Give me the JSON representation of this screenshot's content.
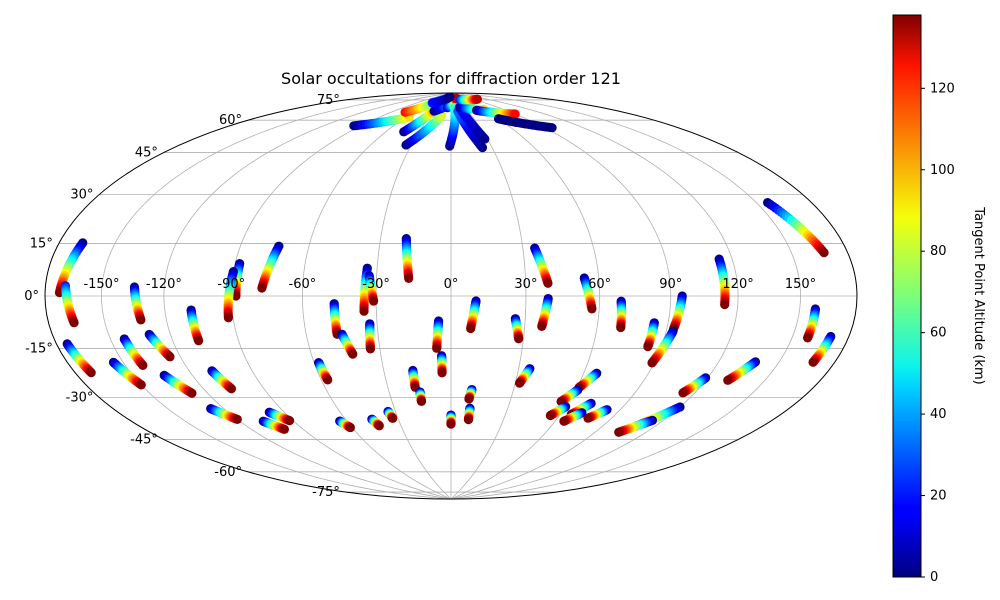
{
  "chart_data": {
    "type": "scatter",
    "projection": "hammer",
    "title": "Solar occultations for diffraction order 121",
    "lon_ticks": [
      -150,
      -120,
      -90,
      -60,
      -30,
      0,
      30,
      60,
      90,
      120,
      150
    ],
    "lat_ticks": [
      -75,
      -60,
      -45,
      -30,
      -15,
      0,
      15,
      30,
      45,
      60,
      75
    ],
    "lon_tick_labels": [
      "-150°",
      "-120°",
      "-90°",
      "-60°",
      "-30°",
      "0°",
      "30°",
      "60°",
      "90°",
      "120°",
      "150°"
    ],
    "lat_tick_labels": [
      "-75°",
      "-60°",
      "-45°",
      "-30°",
      "-15°",
      "0°",
      "15°",
      "30°",
      "45°",
      "60°",
      "75°"
    ],
    "grid": true,
    "colormap": "jet",
    "colorbar": {
      "label": "Tangent Point Altitude (km)",
      "range": [
        0,
        138
      ],
      "ticks": [
        0,
        20,
        40,
        60,
        80,
        100,
        120
      ],
      "tick_labels": [
        "0",
        "20",
        "40",
        "60",
        "80",
        "100",
        "120"
      ]
    },
    "tracks": [
      {
        "lon_start": -167,
        "lat_start": 16,
        "lon_end": -172,
        "lat_end": 1,
        "alt_start": 0,
        "alt_end": 138
      },
      {
        "lon_start": -169,
        "lat_start": 3,
        "lon_end": -166,
        "lat_end": -8,
        "alt_start": 20,
        "alt_end": 138
      },
      {
        "lon_start": -174,
        "lat_start": -14,
        "lon_end": -171,
        "lat_end": -23,
        "alt_start": 0,
        "alt_end": 138
      },
      {
        "lon_start": -155,
        "lat_start": -21,
        "lon_end": -150,
        "lat_end": -29,
        "alt_start": 0,
        "alt_end": 138
      },
      {
        "lon_start": -143,
        "lat_start": -14,
        "lon_end": -141,
        "lat_end": -23,
        "alt_start": 0,
        "alt_end": 138
      },
      {
        "lon_start": -134,
        "lat_start": 3,
        "lon_end": -132,
        "lat_end": -8,
        "alt_start": 0,
        "alt_end": 138
      },
      {
        "lon_start": -130,
        "lat_start": -13,
        "lon_end": -125,
        "lat_end": -21,
        "alt_start": 0,
        "alt_end": 138
      },
      {
        "lon_start": -134,
        "lat_start": -27,
        "lon_end": -128,
        "lat_end": -34,
        "alt_start": 0,
        "alt_end": 138
      },
      {
        "lon_start": -127,
        "lat_start": -40,
        "lon_end": -120,
        "lat_end": -45,
        "alt_start": 0,
        "alt_end": 138
      },
      {
        "lon_start": -108,
        "lat_start": -5,
        "lon_end": -108,
        "lat_end": -16,
        "alt_start": 0,
        "alt_end": 138
      },
      {
        "lon_start": -109,
        "lat_start": -27,
        "lon_end": -106,
        "lat_end": -34,
        "alt_start": 0,
        "alt_end": 138
      },
      {
        "lon_start": -107,
        "lat_start": -47,
        "lon_end": -101,
        "lat_end": -51,
        "alt_start": 0,
        "alt_end": 138
      },
      {
        "lon_start": -98,
        "lat_start": -44,
        "lon_end": -92,
        "lat_end": -48,
        "alt_start": 0,
        "alt_end": 138
      },
      {
        "lon_start": -88,
        "lat_start": 12,
        "lon_end": -88,
        "lat_end": 0,
        "alt_start": 0,
        "alt_end": 138
      },
      {
        "lon_start": -90,
        "lat_start": 9,
        "lon_end": -92,
        "lat_end": -8,
        "alt_start": 0,
        "alt_end": 138
      },
      {
        "lon_start": -73,
        "lat_start": 19,
        "lon_end": -77,
        "lat_end": 3,
        "alt_start": 0,
        "alt_end": 138
      },
      {
        "lon_start": -58,
        "lat_start": -26,
        "lon_end": -57,
        "lat_end": -33,
        "alt_start": 0,
        "alt_end": 138
      },
      {
        "lon_start": -64,
        "lat_start": -50,
        "lon_end": -61,
        "lat_end": -53,
        "alt_start": 0,
        "alt_end": 138
      },
      {
        "lon_start": -47,
        "lat_start": -3,
        "lon_end": -47,
        "lat_end": -15,
        "alt_start": 0,
        "alt_end": 138
      },
      {
        "lon_start": -45,
        "lat_start": -15,
        "lon_end": -42,
        "lat_end": -23,
        "alt_start": 0,
        "alt_end": 138
      },
      {
        "lon_start": -45,
        "lat_start": -50,
        "lon_end": -43,
        "lat_end": -53,
        "alt_start": 0,
        "alt_end": 138
      },
      {
        "lon_start": -34,
        "lat_start": 11,
        "lon_end": -35,
        "lat_end": -6,
        "alt_start": 0,
        "alt_end": 138
      },
      {
        "lon_start": -33,
        "lat_start": 8,
        "lon_end": -31,
        "lat_end": -2,
        "alt_start": 0,
        "alt_end": 138
      },
      {
        "lon_start": -33,
        "lat_start": -11,
        "lon_end": -34,
        "lat_end": -21,
        "alt_start": 0,
        "alt_end": 138
      },
      {
        "lon_start": -34,
        "lat_start": -47,
        "lon_end": -33,
        "lat_end": -50,
        "alt_start": 0,
        "alt_end": 138
      },
      {
        "lon_start": -19,
        "lat_start": 23,
        "lon_end": -17,
        "lat_end": 7,
        "alt_start": 0,
        "alt_end": 138
      },
      {
        "lon_start": -17,
        "lat_start": -30,
        "lon_end": -17,
        "lat_end": -37,
        "alt_start": 0,
        "alt_end": 138
      },
      {
        "lon_start": -15,
        "lat_start": -39,
        "lon_end": -15,
        "lat_end": -43,
        "alt_start": 0,
        "alt_end": 138
      },
      {
        "lon_start": -5,
        "lat_start": -10,
        "lon_end": -6,
        "lat_end": -21,
        "alt_start": 0,
        "alt_end": 138
      },
      {
        "lon_start": -4,
        "lat_start": -24,
        "lon_end": -4,
        "lat_end": -31,
        "alt_start": 0,
        "alt_end": 138
      },
      {
        "lon_start": 0,
        "lat_start": -49,
        "lon_end": 0,
        "lat_end": -53,
        "alt_start": 0,
        "alt_end": 138
      },
      {
        "lon_start": 10,
        "lat_start": -2,
        "lon_end": 8,
        "lat_end": -13,
        "alt_start": 0,
        "alt_end": 138
      },
      {
        "lon_start": 10,
        "lat_start": -38,
        "lon_end": 9,
        "lat_end": -42,
        "alt_start": 0,
        "alt_end": 138
      },
      {
        "lon_start": 10,
        "lat_start": -46,
        "lon_end": 10,
        "lat_end": -51,
        "alt_start": 0,
        "alt_end": 138
      },
      {
        "lon_start": 26,
        "lat_start": -9,
        "lon_end": 28,
        "lat_end": -17,
        "alt_start": 0,
        "alt_end": 138
      },
      {
        "lon_start": 35,
        "lat_start": 19,
        "lon_end": 39,
        "lat_end": 5,
        "alt_start": 0,
        "alt_end": 138
      },
      {
        "lon_start": 39,
        "lat_start": -1,
        "lon_end": 37,
        "lat_end": -12,
        "alt_start": 0,
        "alt_end": 138
      },
      {
        "lon_start": 35,
        "lat_start": -29,
        "lon_end": 32,
        "lat_end": -35,
        "alt_start": 0,
        "alt_end": 138
      },
      {
        "lon_start": 54,
        "lat_start": 7,
        "lon_end": 57,
        "lat_end": -5,
        "alt_start": 0,
        "alt_end": 138
      },
      {
        "lon_start": 66,
        "lat_start": -30,
        "lon_end": 61,
        "lat_end": -36,
        "alt_start": 0,
        "alt_end": 138
      },
      {
        "lon_start": 61,
        "lat_start": -37,
        "lon_end": 56,
        "lat_end": -42,
        "alt_start": 0,
        "alt_end": 138
      },
      {
        "lon_start": 60,
        "lat_start": -44,
        "lon_end": 55,
        "lat_end": -48,
        "alt_start": 0,
        "alt_end": 138
      },
      {
        "lon_start": 69,
        "lat_start": -2,
        "lon_end": 70,
        "lat_end": -12,
        "alt_start": 0,
        "alt_end": 138
      },
      {
        "lon_start": 72,
        "lat_start": -42,
        "lon_end": 66,
        "lat_end": -47,
        "alt_start": 0,
        "alt_end": 138
      },
      {
        "lon_start": 71,
        "lat_start": -46,
        "lon_end": 65,
        "lat_end": -50,
        "alt_start": 0,
        "alt_end": 138
      },
      {
        "lon_start": 83,
        "lat_start": -44,
        "lon_end": 77,
        "lat_end": -48,
        "alt_start": 0,
        "alt_end": 138
      },
      {
        "lon_start": 84,
        "lat_start": -10,
        "lon_end": 84,
        "lat_end": -19,
        "alt_start": 0,
        "alt_end": 138
      },
      {
        "lon_start": 95,
        "lat_start": 0,
        "lon_end": 93,
        "lat_end": -12,
        "alt_start": 0,
        "alt_end": 138
      },
      {
        "lon_start": 93,
        "lat_start": -13,
        "lon_end": 89,
        "lat_end": -25,
        "alt_start": 0,
        "alt_end": 138
      },
      {
        "lon_start": 114,
        "lat_start": 13,
        "lon_end": 114,
        "lat_end": -3,
        "alt_start": 0,
        "alt_end": 138
      },
      {
        "lon_start": 119,
        "lat_start": -29,
        "lon_end": 114,
        "lat_end": -35,
        "alt_start": 0,
        "alt_end": 138
      },
      {
        "lon_start": 120,
        "lat_start": -40,
        "lon_end": 109,
        "lat_end": -49,
        "alt_start": 0,
        "alt_end": 138
      },
      {
        "lon_start": 114,
        "lat_start": -46,
        "lon_end": 104,
        "lat_end": -52,
        "alt_start": 0,
        "alt_end": 138
      },
      {
        "lon_start": 138,
        "lat_start": -22,
        "lon_end": 131,
        "lat_end": -29,
        "alt_start": 0,
        "alt_end": 138
      },
      {
        "lon_start": 156,
        "lat_start": 30,
        "lon_end": 167,
        "lat_end": 13,
        "alt_start": 0,
        "alt_end": 138
      },
      {
        "lon_start": 158,
        "lat_start": -4,
        "lon_end": 158,
        "lat_end": -13,
        "alt_start": 0,
        "alt_end": 138
      },
      {
        "lon_start": 170,
        "lat_start": -12,
        "lon_end": 168,
        "lat_end": -20,
        "alt_start": 0,
        "alt_end": 138
      },
      {
        "lon_start": -96,
        "lat_start": 69,
        "lon_end": -56,
        "lat_end": 76,
        "alt_start": 0,
        "alt_end": 90
      },
      {
        "lon_start": -44,
        "lat_start": 69,
        "lon_end": -30,
        "lat_end": 80,
        "alt_start": 0,
        "alt_end": 100
      },
      {
        "lon_start": -34,
        "lat_start": 63,
        "lon_end": -14,
        "lat_end": 78,
        "alt_start": 0,
        "alt_end": 80
      },
      {
        "lon_start": -72,
        "lat_start": 78,
        "lon_end": -40,
        "lat_end": 86,
        "alt_start": 120,
        "alt_end": 40
      },
      {
        "lon_start": -30,
        "lat_start": 80,
        "lon_end": 10,
        "lat_end": 86,
        "alt_start": 0,
        "alt_end": 60
      },
      {
        "lon_start": -8,
        "lat_start": 82,
        "lon_end": 30,
        "lat_end": 87,
        "alt_start": 10,
        "alt_end": 130
      },
      {
        "lon_start": -1,
        "lat_start": 63,
        "lon_end": 8,
        "lat_end": 82,
        "alt_start": 0,
        "alt_end": 60
      },
      {
        "lon_start": 23,
        "lat_start": 62,
        "lon_end": 12,
        "lat_end": 80,
        "alt_start": 0,
        "alt_end": 30
      },
      {
        "lon_start": 28,
        "lat_start": 66,
        "lon_end": 18,
        "lat_end": 82,
        "alt_start": 0,
        "alt_end": 20
      },
      {
        "lon_start": 20,
        "lat_start": 82,
        "lon_end": 60,
        "lat_end": 80,
        "alt_start": 0,
        "alt_end": 90
      },
      {
        "lon_start": 46,
        "lat_start": 80,
        "lon_end": 90,
        "lat_end": 76,
        "alt_start": 0,
        "alt_end": 120
      },
      {
        "lon_start": 60,
        "lat_start": 75,
        "lon_end": 96,
        "lat_end": 68,
        "alt_start": 0,
        "alt_end": 0
      },
      {
        "lon_start": 40,
        "lat_start": 86,
        "lon_end": 100,
        "lat_end": 85,
        "alt_start": 20,
        "alt_end": 130
      },
      {
        "lon_start": -55,
        "lat_start": 84,
        "lon_end": -8,
        "lat_end": 88,
        "alt_start": 20,
        "alt_end": 0
      }
    ]
  }
}
